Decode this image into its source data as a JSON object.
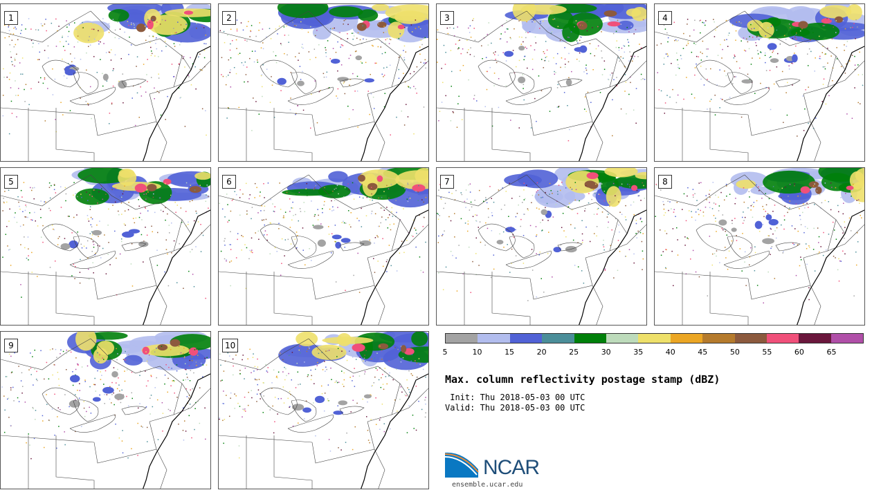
{
  "panels": [
    {
      "label": "1"
    },
    {
      "label": "2"
    },
    {
      "label": "3"
    },
    {
      "label": "4"
    },
    {
      "label": "5"
    },
    {
      "label": "6"
    },
    {
      "label": "7"
    },
    {
      "label": "8"
    },
    {
      "label": "9"
    },
    {
      "label": "10"
    }
  ],
  "colorbar": {
    "colors": [
      "#a3a3a3",
      "#b2bdee",
      "#5162d6",
      "#4b8e99",
      "#00800a",
      "#bddbbb",
      "#eee06a",
      "#eba624",
      "#b57b2d",
      "#8c5a3e",
      "#f0507a",
      "#6a173c",
      "#b04fa8"
    ],
    "ticks": [
      "5",
      "10",
      "15",
      "20",
      "25",
      "30",
      "35",
      "40",
      "45",
      "50",
      "55",
      "60",
      "65"
    ]
  },
  "title": "Max. column reflectivity postage stamp (dBZ)",
  "init_text": " Init: Thu 2018-05-03 00 UTC",
  "valid_text": "Valid: Thu 2018-05-03 00 UTC",
  "logo": {
    "name": "NCAR",
    "url": "ensemble.ucar.edu"
  }
}
